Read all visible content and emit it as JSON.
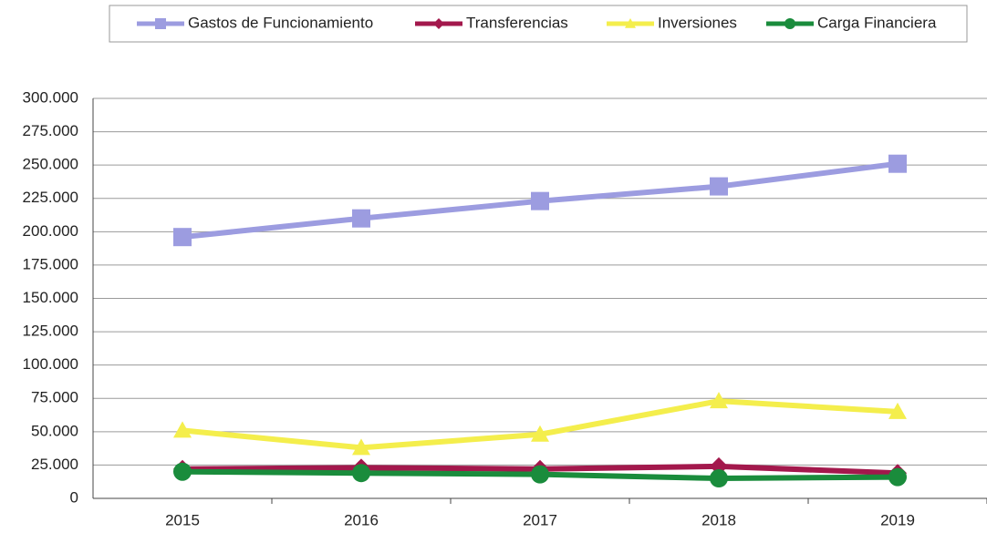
{
  "chart_data": {
    "type": "line",
    "categories": [
      "2015",
      "2016",
      "2017",
      "2018",
      "2019"
    ],
    "series": [
      {
        "name": "Gastos de Funcionamiento",
        "color": "#9c9ce0",
        "marker": "square",
        "values": [
          196000,
          210000,
          223000,
          234000,
          251000
        ]
      },
      {
        "name": "Transferencias",
        "color": "#a3184c",
        "marker": "diamond",
        "values": [
          22000,
          23000,
          22000,
          24000,
          19000
        ]
      },
      {
        "name": "Inversiones",
        "color": "#f4ee4c",
        "marker": "triangle",
        "values": [
          51000,
          38000,
          48000,
          73000,
          65000
        ]
      },
      {
        "name": "Carga Financiera",
        "color": "#1a8c3c",
        "marker": "circle",
        "values": [
          20000,
          19000,
          18000,
          15000,
          16000
        ]
      }
    ],
    "ylim": [
      0,
      300000
    ],
    "yticks": [
      0,
      {
        "value": 25000,
        "label": "25.000"
      },
      {
        "value": 50000,
        "label": "50.000"
      },
      {
        "value": 75000,
        "label": "75.000"
      },
      {
        "value": 100000,
        "label": "100.000"
      },
      {
        "value": 125000,
        "label": "125.000"
      },
      {
        "value": 150000,
        "label": "150.000"
      },
      {
        "value": 175000,
        "label": "175.000"
      },
      {
        "value": 200000,
        "label": "200.000"
      },
      {
        "value": 225000,
        "label": "225.000"
      },
      {
        "value": 250000,
        "label": "250.000"
      },
      {
        "value": 275000,
        "label": "275.000"
      },
      {
        "value": 300000,
        "label": "300.000"
      }
    ],
    "grid": true,
    "legend": "top"
  }
}
